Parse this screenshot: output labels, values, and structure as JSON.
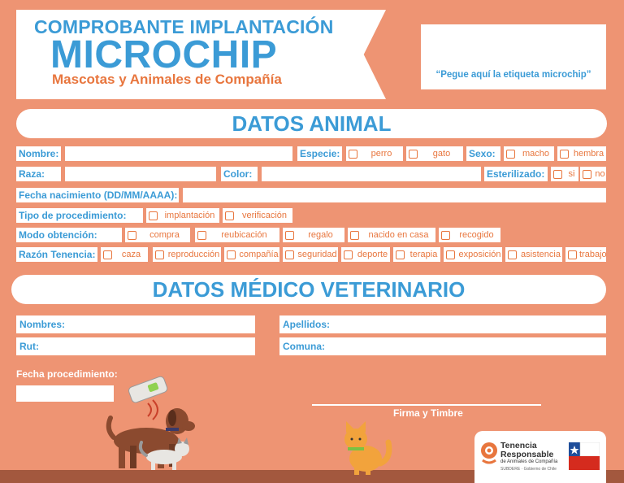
{
  "header": {
    "line1": "COMPROBANTE IMPLANTACIÓN",
    "line2": "MICROCHIP",
    "line3": "Mascotas y Animales de Compañía",
    "sticker_note": "“Pegue aquí la etiqueta microchip”"
  },
  "section_animal": {
    "title": "DATOS ANIMAL",
    "nombre_label": "Nombre:",
    "especie_label": "Especie:",
    "especie_options": [
      "perro",
      "gato"
    ],
    "sexo_label": "Sexo:",
    "sexo_options": [
      "macho",
      "hembra"
    ],
    "raza_label": "Raza:",
    "color_label": "Color:",
    "esterilizado_label": "Esterilizado:",
    "esterilizado_options": [
      "si",
      "no"
    ],
    "fecha_nac_label": "Fecha nacimiento (DD/MM/AAAA):",
    "tipo_label": "Tipo de procedimiento:",
    "tipo_options": [
      "implantación",
      "verificación"
    ],
    "modo_label": "Modo obtención:",
    "modo_options": [
      "compra",
      "reubicación",
      "regalo",
      "nacido en casa",
      "recogido"
    ],
    "razon_label": "Razón Tenencia:",
    "razon_options": [
      "caza",
      "reproducción",
      "compañía",
      "seguridad",
      "deporte",
      "terapia",
      "exposición",
      "asistencia",
      "trabajo"
    ]
  },
  "section_vet": {
    "title": "DATOS MÉDICO VETERINARIO",
    "nombres_label": "Nombres:",
    "apellidos_label": "Apellidos:",
    "rut_label": "Rut:",
    "comuna_label": "Comuna:",
    "fecha_proc_label": "Fecha procedimiento:",
    "firma_label": "Firma y Timbre"
  },
  "footer": {
    "logo_line1": "Tenencia",
    "logo_line2": "Responsable",
    "logo_line3": "de Animales de Compañía",
    "logo_line4": "SUBDERE · Gobierno de Chile"
  },
  "colors": {
    "background": "#EE9473",
    "blue": "#3B9BD6",
    "orange": "#E8763E",
    "ground": "#A3583E"
  }
}
